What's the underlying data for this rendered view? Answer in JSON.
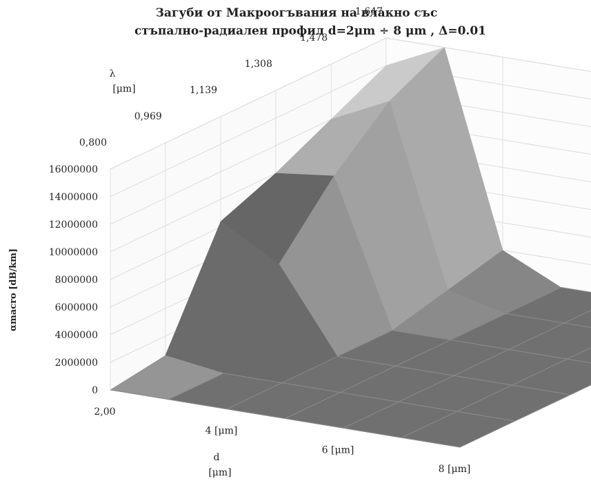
{
  "chart_data": {
    "type": "surface3d",
    "title_line1": "Загуби от Макроогъвания на влакно със",
    "title_line2": "стъпално-радиален профил  d=2μm  ÷ 8 μm ,  Δ=0.01",
    "y_axis_label": "αmacro [dB/km]",
    "y_ticks": [
      "0",
      "2000000",
      "4000000",
      "6000000",
      "8000000",
      "10000000",
      "12000000",
      "14000000",
      "16000000"
    ],
    "ylim": [
      0,
      16000000
    ],
    "d_axis_label_line1": "d",
    "d_axis_label_line2": "[μm]",
    "d_ticks": [
      "2,00",
      "4 [μm]",
      "6  [μm]",
      "8  [μm]"
    ],
    "lambda_axis_label_line1": "λ",
    "lambda_axis_label_line2": "[μm]",
    "lambda_ticks": [
      "0,800",
      "0,969",
      "1,139",
      "1,308",
      "1,478",
      "1,647"
    ],
    "d_values": [
      2,
      3,
      4,
      5,
      6,
      7,
      8
    ],
    "lambda_values": [
      0.8,
      0.969,
      1.139,
      1.308,
      1.478,
      1.647
    ],
    "z_values": [
      [
        0,
        0,
        0,
        0,
        0,
        0,
        0
      ],
      [
        600000,
        0,
        0,
        0,
        0,
        0,
        0
      ],
      [
        8400000,
        6000000,
        0,
        0,
        0,
        0,
        0
      ],
      [
        10000000,
        10500000,
        0,
        0,
        0,
        0,
        0
      ],
      [
        12000000,
        14000000,
        1000000,
        0,
        0,
        0,
        0
      ],
      [
        14000000,
        16000000,
        2000000,
        0,
        0,
        0,
        0
      ]
    ],
    "grid": true,
    "surface_color": "#6e6e6e"
  }
}
